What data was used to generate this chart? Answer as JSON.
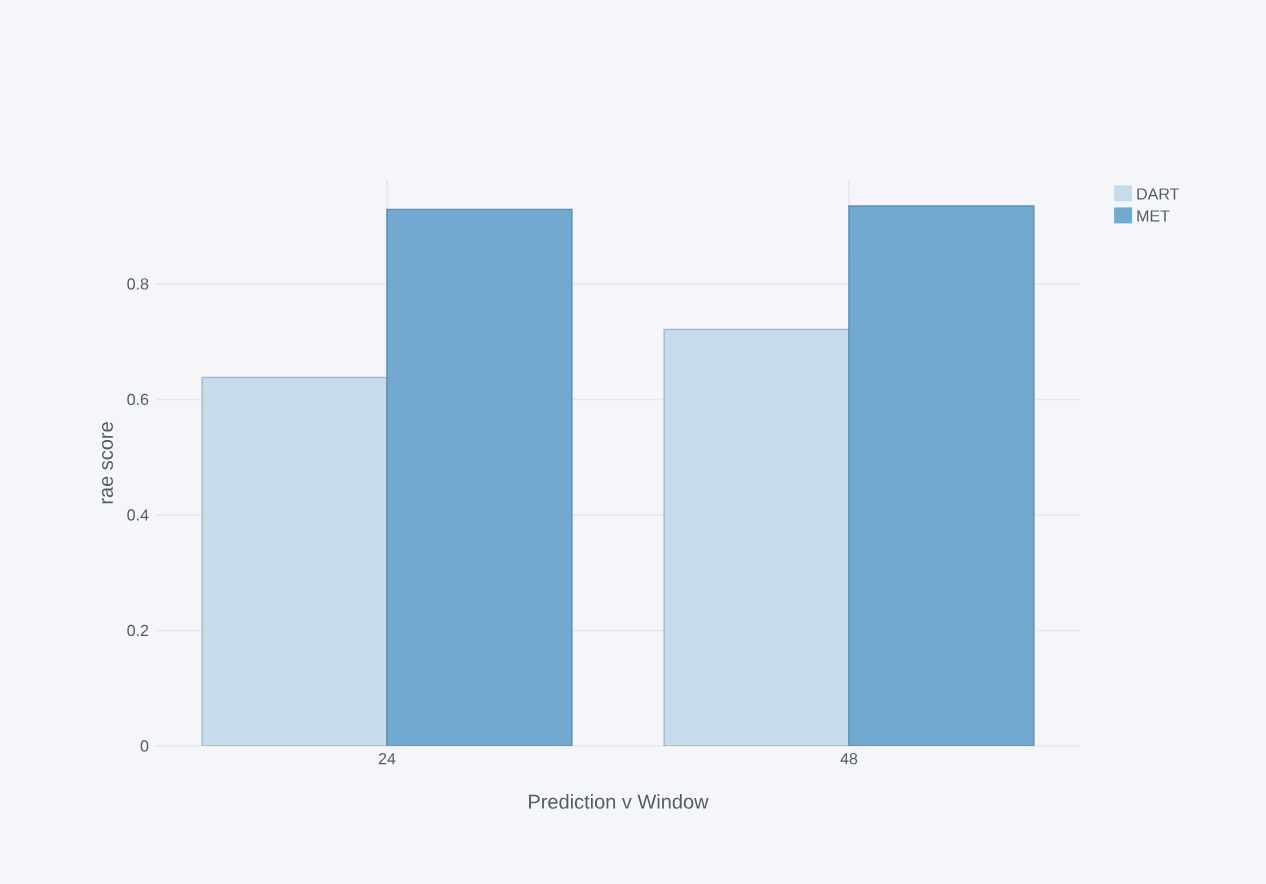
{
  "chart_data": {
    "type": "bar",
    "xlabel": "Prediction v Window",
    "ylabel": "rae score",
    "categories": [
      "24",
      "48"
    ],
    "series": [
      {
        "name": "DART",
        "color": "#c6dcea",
        "values": [
          0.638,
          0.721
        ]
      },
      {
        "name": "MET",
        "color": "#72a9d0",
        "values": [
          0.929,
          0.935
        ]
      }
    ],
    "ylim": [
      0,
      0.98
    ],
    "yticks": [
      0,
      0.2,
      0.4,
      0.6,
      0.8
    ],
    "grid": true,
    "legend": "top right"
  }
}
